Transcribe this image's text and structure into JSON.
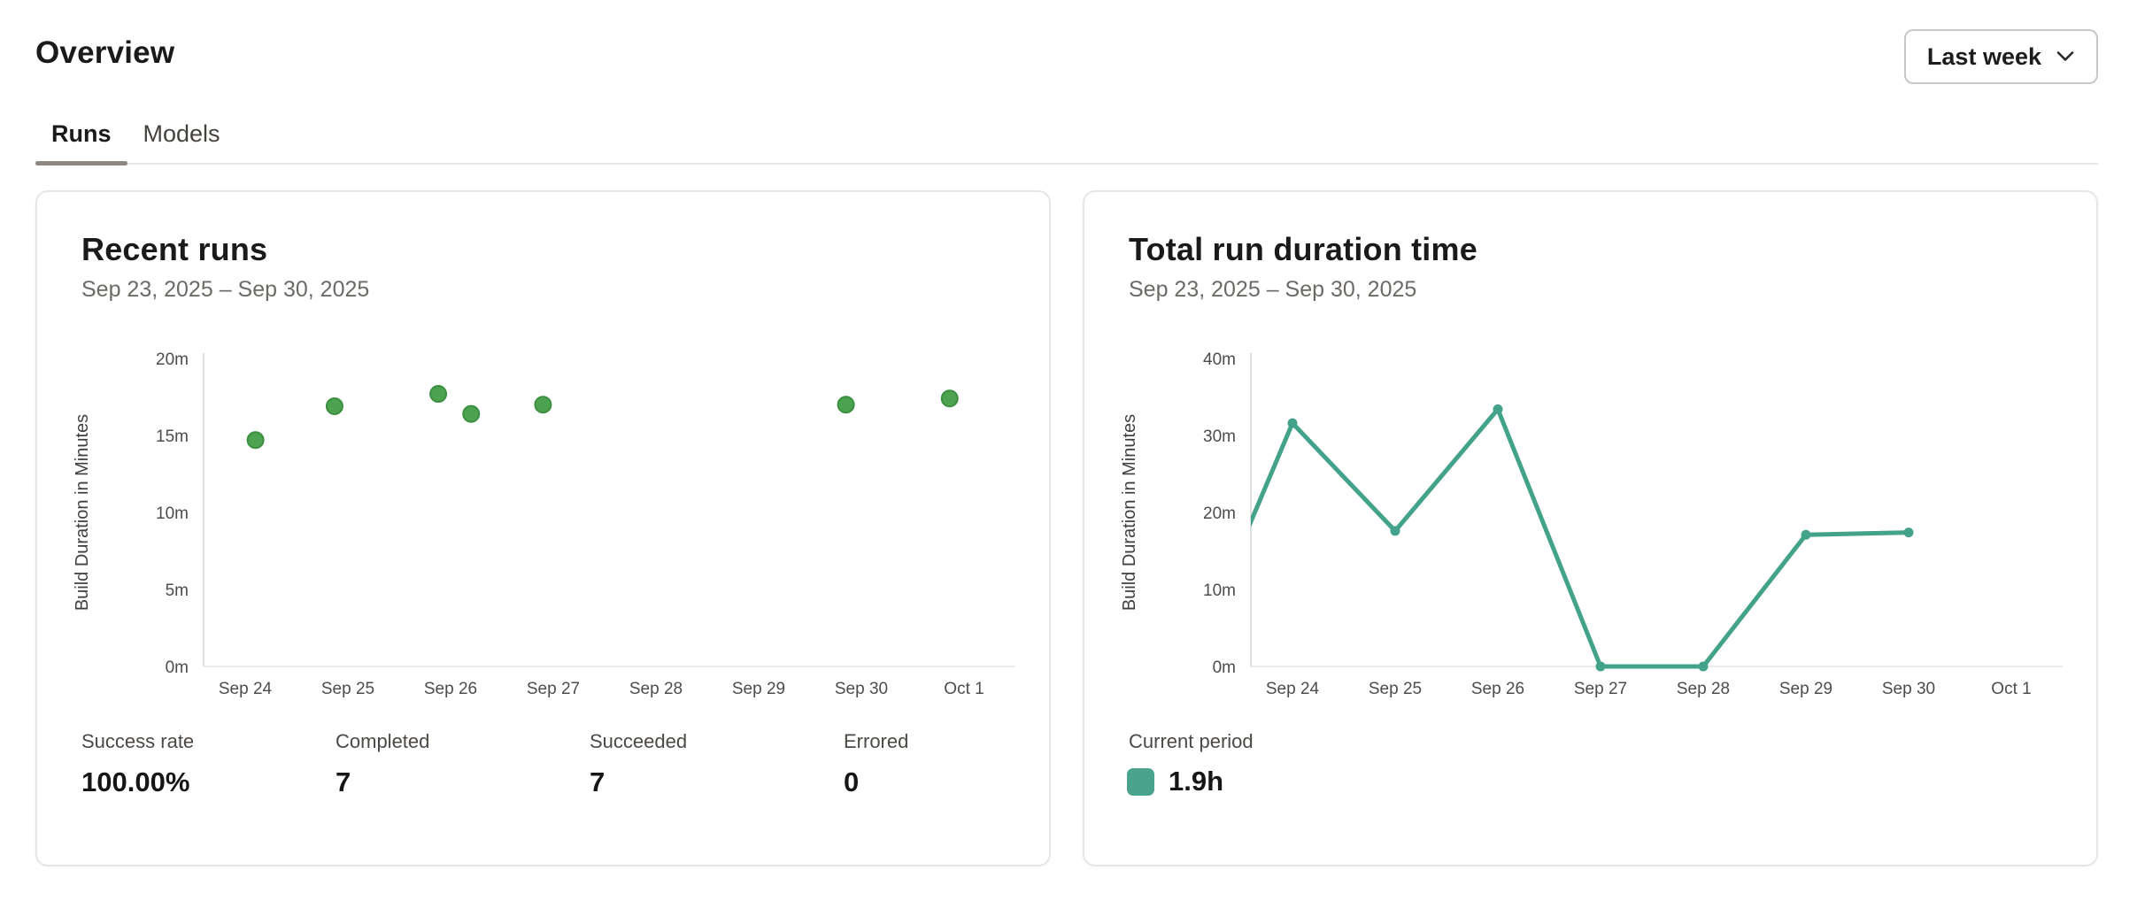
{
  "page": {
    "title": "Overview"
  },
  "period_selector": {
    "label": "Last week",
    "icon": "chevron-down-icon"
  },
  "tabs": [
    {
      "label": "Runs",
      "active": true
    },
    {
      "label": "Models",
      "active": false
    }
  ],
  "cards": {
    "recent_runs": {
      "title": "Recent runs",
      "date_range": "Sep 23, 2025 – Sep 30, 2025",
      "stats": [
        {
          "label": "Success rate",
          "value": "100.00%"
        },
        {
          "label": "Completed",
          "value": "7"
        },
        {
          "label": "Succeeded",
          "value": "7"
        },
        {
          "label": "Errored",
          "value": "0"
        }
      ]
    },
    "total_duration": {
      "title": "Total run duration time",
      "date_range": "Sep 23, 2025 – Sep 30, 2025",
      "legend": {
        "label": "Current period",
        "value": "1.9h",
        "color": "#4aa48d"
      }
    }
  },
  "chart_data": [
    {
      "type": "scatter",
      "title": "Recent runs",
      "xlabel": "",
      "ylabel": "Build Duration in Minutes",
      "xticks": [
        "Sep 24",
        "Sep 25",
        "Sep 26",
        "Sep 27",
        "Sep 28",
        "Sep 29",
        "Sep 30",
        "Oct 1"
      ],
      "yticks": [
        "0m",
        "5m",
        "10m",
        "15m",
        "20m"
      ],
      "ylim": [
        0,
        20
      ],
      "x_unit": "day_index_from_Sep24_tick",
      "grid": false,
      "point_color": "#4ca24f",
      "point_border_color": "#3c8f41",
      "points": [
        {
          "x": 0.1,
          "y": 14.7
        },
        {
          "x": 0.87,
          "y": 16.9
        },
        {
          "x": 1.88,
          "y": 17.7
        },
        {
          "x": 2.2,
          "y": 16.4
        },
        {
          "x": 2.9,
          "y": 17.0
        },
        {
          "x": 5.85,
          "y": 17.0
        },
        {
          "x": 6.86,
          "y": 17.4
        }
      ]
    },
    {
      "type": "line",
      "title": "Total run duration time",
      "xlabel": "",
      "ylabel": "Build Duration in Minutes",
      "xticks": [
        "Sep 24",
        "Sep 25",
        "Sep 26",
        "Sep 27",
        "Sep 28",
        "Sep 29",
        "Sep 30",
        "Oct 1"
      ],
      "yticks": [
        "0m",
        "10m",
        "20m",
        "30m",
        "40m"
      ],
      "ylim": [
        0,
        40
      ],
      "x_unit": "day_index_from_Sep24_tick",
      "grid": false,
      "legend_position": "bottom-left",
      "line_color": "#43a28a",
      "series": [
        {
          "name": "Current period",
          "total": "1.9h",
          "points": [
            {
              "x": -1,
              "y": 0,
              "date": "Sep 23",
              "marker": false
            },
            {
              "x": 0,
              "y": 31.6,
              "date": "Sep 24",
              "marker": true
            },
            {
              "x": 1,
              "y": 17.6,
              "date": "Sep 25",
              "marker": true
            },
            {
              "x": 2,
              "y": 33.4,
              "date": "Sep 26",
              "marker": true
            },
            {
              "x": 3,
              "y": 0,
              "date": "Sep 27",
              "marker": true
            },
            {
              "x": 4,
              "y": 0,
              "date": "Sep 28",
              "marker": true
            },
            {
              "x": 5,
              "y": 17.1,
              "date": "Sep 29",
              "marker": true
            },
            {
              "x": 6,
              "y": 17.4,
              "date": "Sep 30",
              "marker": true
            }
          ]
        }
      ]
    }
  ]
}
